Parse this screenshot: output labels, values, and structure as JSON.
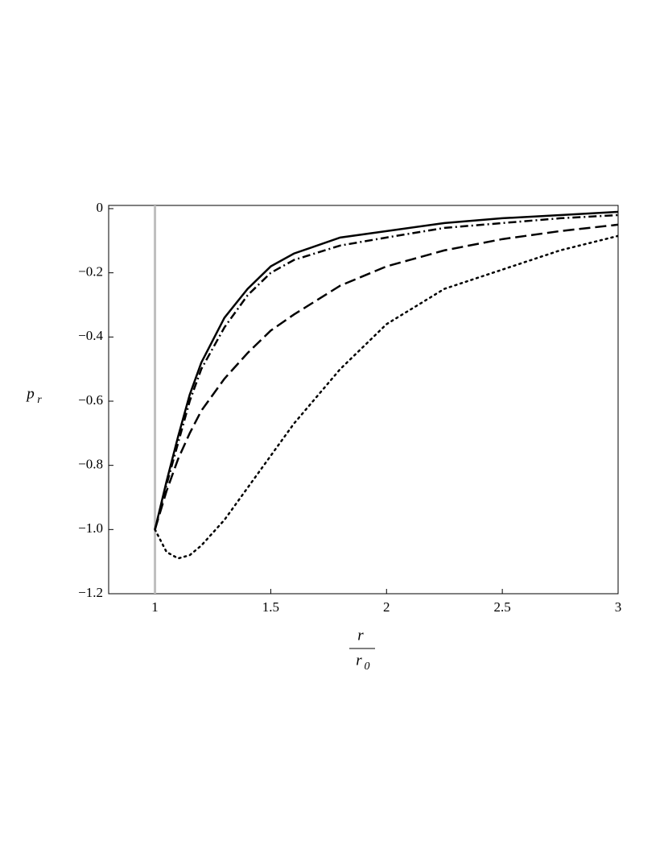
{
  "chart_data": {
    "type": "line",
    "x_label": {
      "numerator": "r",
      "denominator": {
        "base": "r",
        "sub": "0"
      }
    },
    "y_label": {
      "base": "p",
      "sub": "r"
    },
    "x": [
      1,
      1.05,
      1.1,
      1.15,
      1.2,
      1.3,
      1.4,
      1.5,
      1.6,
      1.8,
      2,
      2.25,
      2.5,
      2.75,
      3
    ],
    "series": [
      {
        "color": "#000000",
        "dash": "solid",
        "values": [
          -1.0,
          -0.85,
          -0.71,
          -0.58,
          -0.48,
          -0.34,
          -0.25,
          -0.18,
          -0.14,
          -0.09,
          -0.07,
          -0.045,
          -0.03,
          -0.02,
          -0.01
        ]
      },
      {
        "color": "#000000",
        "dash": "dashdot",
        "values": [
          -1.0,
          -0.86,
          -0.73,
          -0.6,
          -0.5,
          -0.37,
          -0.27,
          -0.2,
          -0.16,
          -0.115,
          -0.09,
          -0.06,
          -0.045,
          -0.03,
          -0.02
        ]
      },
      {
        "color": "#000000",
        "dash": "dash",
        "values": [
          -1.0,
          -0.88,
          -0.78,
          -0.7,
          -0.63,
          -0.53,
          -0.45,
          -0.38,
          -0.33,
          -0.24,
          -0.18,
          -0.13,
          -0.095,
          -0.07,
          -0.05
        ]
      },
      {
        "color": "#000000",
        "dash": "dot",
        "values": [
          -1.0,
          -1.07,
          -1.09,
          -1.08,
          -1.05,
          -0.97,
          -0.87,
          -0.77,
          -0.67,
          -0.5,
          -0.36,
          -0.25,
          -0.19,
          -0.13,
          -0.085
        ]
      }
    ],
    "vertical_line": {
      "x": 1,
      "color": "#bfbfbf"
    },
    "xlim": [
      0.8,
      3.0
    ],
    "ylim": [
      -1.2,
      0.01
    ],
    "xticks": [
      1,
      1.5,
      2,
      2.5,
      3
    ],
    "yticks": [
      0,
      {
        "value": -0.2,
        "label": "−0.2"
      },
      {
        "value": -0.4,
        "label": "−0.4"
      },
      {
        "value": -0.6,
        "label": "−0.6"
      },
      {
        "value": -0.8,
        "label": "−0.8"
      },
      {
        "value": -1.0,
        "label": "−1.0"
      },
      {
        "value": -1.2,
        "label": "−1.2"
      }
    ]
  }
}
